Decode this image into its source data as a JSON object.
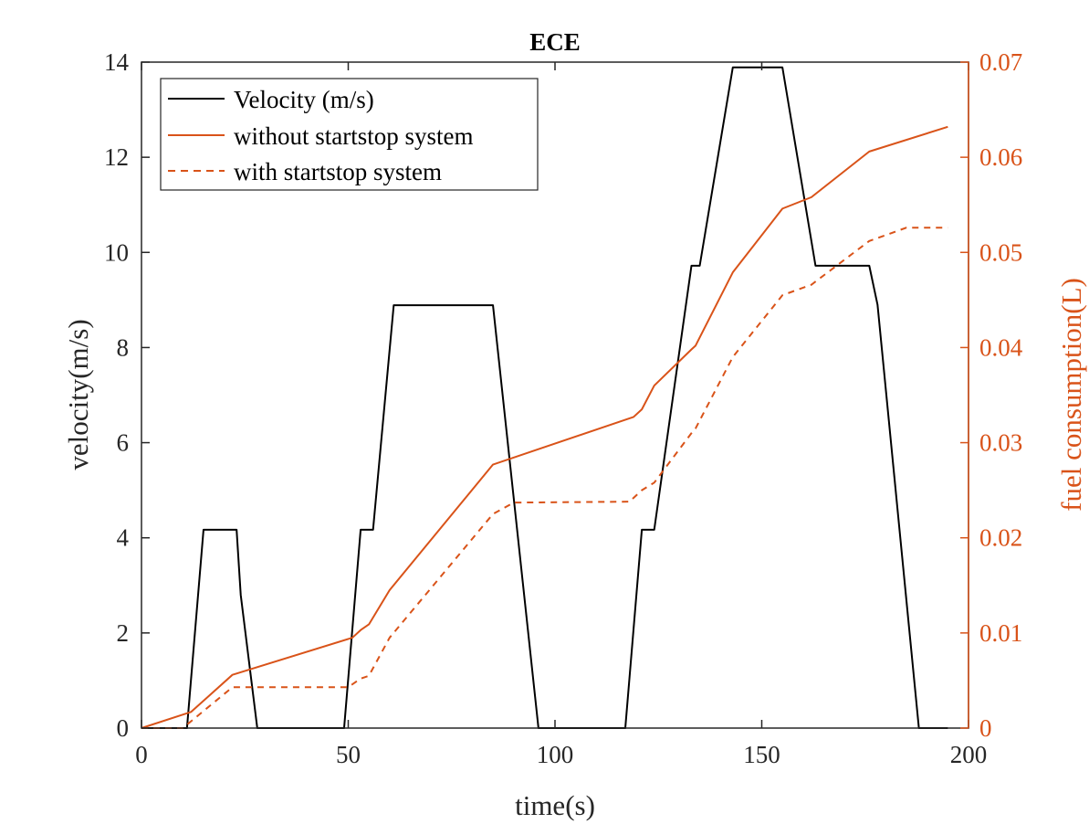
{
  "chart_data": {
    "type": "line",
    "title": "ECE",
    "xlabel": "time(s)",
    "ylabel": "velocity(m/s)",
    "y2label": "fuel consumption(L)",
    "xlim": [
      0,
      200
    ],
    "ylim": [
      0,
      14
    ],
    "y2lim": [
      0,
      0.07
    ],
    "xticks": [
      0,
      50,
      100,
      150,
      200
    ],
    "yticks": [
      0,
      2,
      4,
      6,
      8,
      10,
      12,
      14
    ],
    "y2ticks": [
      0,
      0.01,
      0.02,
      0.03,
      0.04,
      0.05,
      0.06,
      0.07
    ],
    "xtick_labels": [
      "0",
      "50",
      "100",
      "150",
      "200"
    ],
    "ytick_labels": [
      "0",
      "2",
      "4",
      "6",
      "8",
      "10",
      "12",
      "14"
    ],
    "y2tick_labels": [
      "0",
      "0.01",
      "0.02",
      "0.03",
      "0.04",
      "0.05",
      "0.06",
      "0.07"
    ],
    "grid": false,
    "legend_position": "top-left",
    "colors": {
      "velocity": "#000000",
      "fuel": "#d95319",
      "axes": "#262626"
    },
    "series": [
      {
        "name": "Velocity (m/s)",
        "axis": "left",
        "style": "solid",
        "color": "#000000",
        "x": [
          0,
          11,
          15,
          23,
          24,
          28,
          49,
          53,
          54,
          56,
          61,
          85,
          96,
          117,
          121,
          122,
          124,
          133,
          134,
          135,
          143,
          155,
          163,
          176,
          178,
          188,
          195
        ],
        "y": [
          0,
          0,
          4.17,
          4.17,
          2.8,
          0,
          0,
          4.17,
          4.17,
          4.17,
          8.89,
          8.89,
          0,
          0,
          4.17,
          4.17,
          4.17,
          9.72,
          9.72,
          9.72,
          13.89,
          13.89,
          9.72,
          9.72,
          8.9,
          0,
          0
        ]
      },
      {
        "name": "without startstop system",
        "axis": "right",
        "style": "solid",
        "color": "#d95319",
        "x": [
          0,
          12,
          22,
          51,
          53,
          55,
          60,
          85,
          119,
          121,
          124,
          133,
          134,
          143,
          155,
          162,
          176,
          195
        ],
        "y": [
          0,
          0.0017,
          0.0056,
          0.0095,
          0.0103,
          0.0109,
          0.0145,
          0.0277,
          0.0327,
          0.0335,
          0.036,
          0.0398,
          0.0402,
          0.0479,
          0.0546,
          0.0558,
          0.0606,
          0.0632
        ]
      },
      {
        "name": "with startstop system",
        "axis": "right",
        "style": "dashed",
        "color": "#d95319",
        "x": [
          0,
          10,
          22,
          50,
          53,
          55,
          60,
          85,
          90,
          118,
          121,
          124,
          133,
          134,
          143,
          155,
          162,
          176,
          185,
          195
        ],
        "y": [
          0,
          0,
          0.0043,
          0.0043,
          0.0052,
          0.0055,
          0.0095,
          0.0225,
          0.0237,
          0.0238,
          0.025,
          0.0258,
          0.031,
          0.0315,
          0.039,
          0.0455,
          0.0466,
          0.0512,
          0.0526,
          0.0526
        ]
      }
    ]
  }
}
